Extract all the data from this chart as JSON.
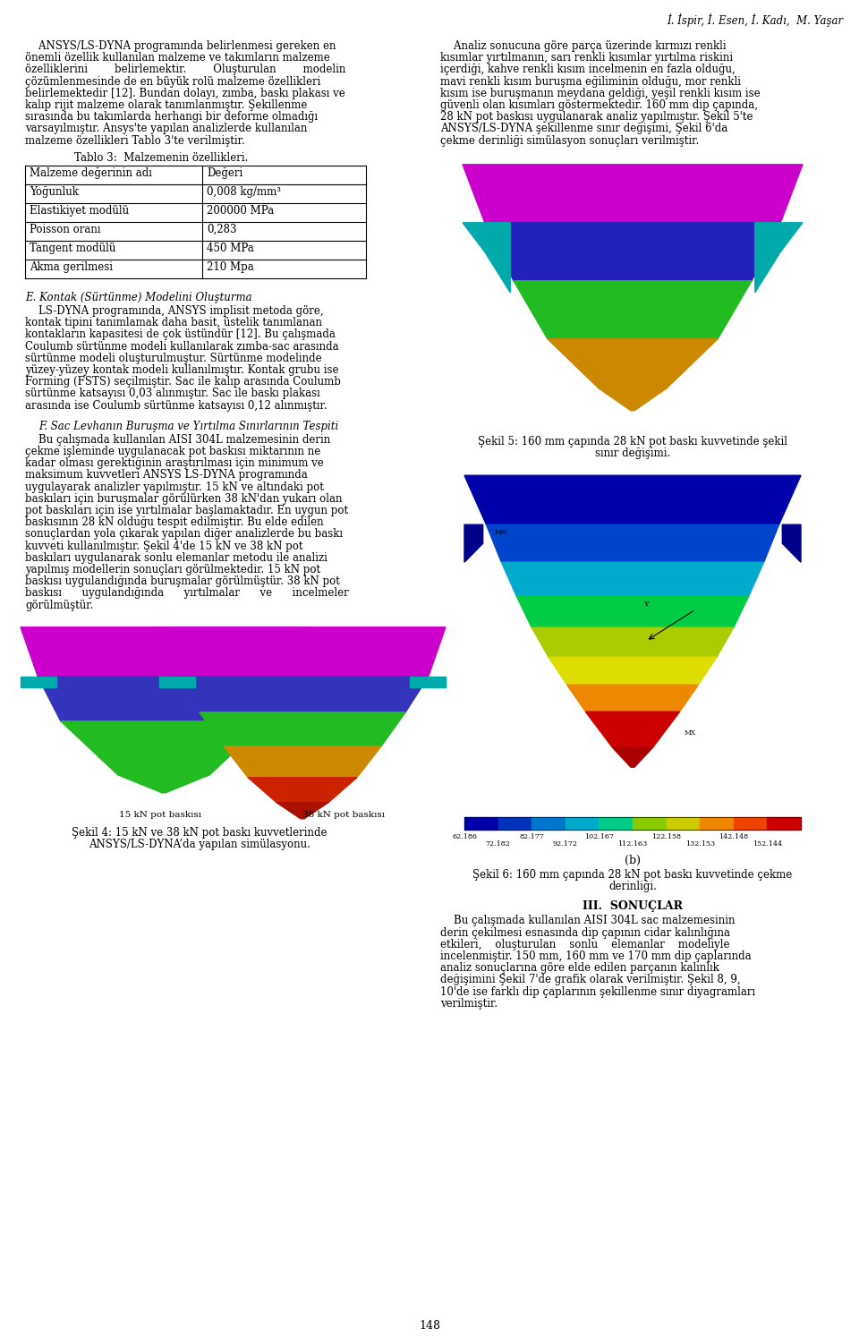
{
  "page_width": 9.6,
  "page_height": 14.95,
  "background_color": "#ffffff",
  "header_text": "İ. İspir, İ. Esen, İ. Kadı,  M. Yaşar",
  "table_title": "Tablo 3:  Malzemenin özellikleri.",
  "table_headers": [
    "Malzeme değerinin adı",
    "Değeri"
  ],
  "table_rows": [
    [
      "Yoğunluk",
      "0,008 kg/mm³"
    ],
    [
      "Elastikiyet modülü",
      "200000 MPa"
    ],
    [
      "Poisson oranı",
      "0,283"
    ],
    [
      "Tangent modülü",
      "450 MPa"
    ],
    [
      "Akma gerilmesi",
      "210 Mpa"
    ]
  ],
  "section_e_title": "E. Kontak (Sürtünme) Modelini Oluşturma",
  "section_f_title": "F. Sac Levhanın Buruşma ve Yırtılma Sınırlarının Tespiti",
  "fig4_caption_line1": "Şekil 4: 15 kN ve 38 kN pot baskı kuvvetlerinde",
  "fig4_caption_line2": "ANSYS/LS-DYNA’da yapılan simülasyonu.",
  "fig5_caption_line1": "Şekil 5: 160 mm çapında 28 kN pot baskı kuvvetinde şekil",
  "fig5_caption_line2": "sınır değişimi.",
  "fig6b_label": "(b)",
  "fig6_caption_line1": "Şekil 6: 160 mm çapında 28 kN pot baskı kuvvetinde çekme",
  "fig6_caption_line2": "derinliği.",
  "section3_title": "III.  SONUÇLAR",
  "page_number": "148",
  "colorbar_values_top": [
    "62.186",
    "82.177",
    "102.167",
    "122.158",
    "142.148"
  ],
  "colorbar_values_bot": [
    "72.182",
    "92.172",
    "112.163",
    "132.153",
    "152.144"
  ]
}
